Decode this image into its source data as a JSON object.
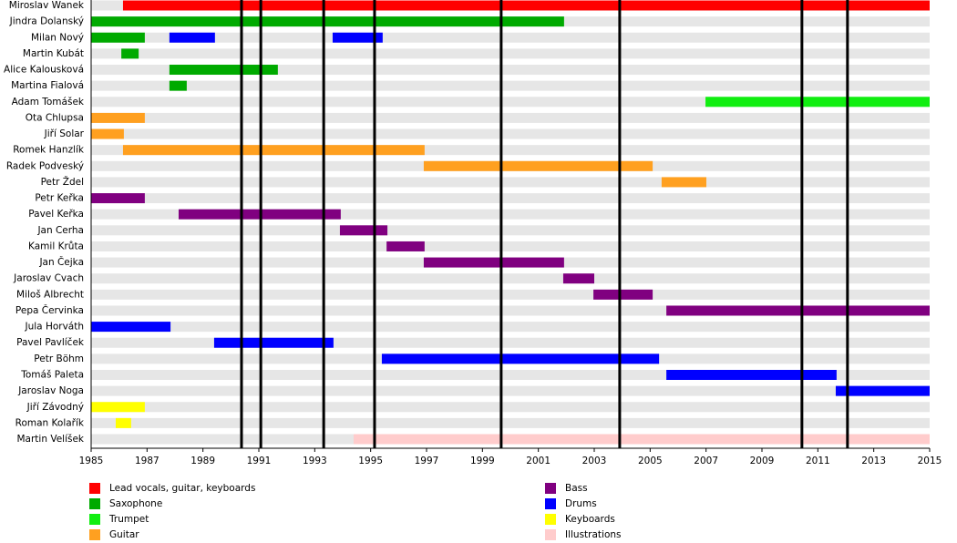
{
  "chart_data": {
    "type": "timeline",
    "xlim": [
      1985,
      2015
    ],
    "xticks": [
      1985,
      1987,
      1989,
      1991,
      1993,
      1995,
      1997,
      1999,
      2001,
      2003,
      2005,
      2007,
      2009,
      2011,
      2013,
      2015
    ],
    "roles": [
      {
        "name": "Lead vocals, guitar, keyboards",
        "color": "#ff0000"
      },
      {
        "name": "Saxophone",
        "color": "#00aa00"
      },
      {
        "name": "Trumpet",
        "color": "#11ee11"
      },
      {
        "name": "Guitar",
        "color": "#ffa020"
      },
      {
        "name": "Bass",
        "color": "#800080"
      },
      {
        "name": "Drums",
        "color": "#0000ff"
      },
      {
        "name": "Keyboards",
        "color": "#ffff00"
      },
      {
        "name": "Illustrations",
        "color": "#ffcccc"
      }
    ],
    "events": [
      1990.38,
      1991.07,
      1993.32,
      1995.14,
      1999.67,
      2003.91,
      2010.43,
      2012.06
    ],
    "members": [
      {
        "name": "Miroslav Wanek",
        "bars": [
          {
            "role": "Lead vocals, guitar, keyboards",
            "start": 1986.14,
            "end": 2015
          }
        ]
      },
      {
        "name": "Jindra Dolanský",
        "bars": [
          {
            "role": "Saxophone",
            "start": 1985,
            "end": 2001.92
          }
        ]
      },
      {
        "name": "Milan Nový",
        "bars": [
          {
            "role": "Saxophone",
            "start": 1985,
            "end": 1986.92
          },
          {
            "role": "Drums",
            "start": 1987.8,
            "end": 1989.43
          },
          {
            "role": "Drums",
            "start": 1993.64,
            "end": 1995.43
          }
        ]
      },
      {
        "name": "Martin Kubát",
        "bars": [
          {
            "role": "Saxophone",
            "start": 1986.08,
            "end": 1986.7
          }
        ]
      },
      {
        "name": "Alice Kalousková",
        "bars": [
          {
            "role": "Saxophone",
            "start": 1987.8,
            "end": 1991.68
          }
        ]
      },
      {
        "name": "Martina Fialová",
        "bars": [
          {
            "role": "Saxophone",
            "start": 1987.8,
            "end": 1988.42
          }
        ]
      },
      {
        "name": "Adam Tomášek",
        "bars": [
          {
            "role": "Trumpet",
            "start": 2006.98,
            "end": 2015
          }
        ]
      },
      {
        "name": "Ota Chlupsa",
        "bars": [
          {
            "role": "Guitar",
            "start": 1985,
            "end": 1986.92
          }
        ]
      },
      {
        "name": "Jiří Solar",
        "bars": [
          {
            "role": "Guitar",
            "start": 1985,
            "end": 1986.17
          }
        ]
      },
      {
        "name": "Romek Hanzlík",
        "bars": [
          {
            "role": "Guitar",
            "start": 1986.14,
            "end": 1996.93
          }
        ]
      },
      {
        "name": "Radek Podveský",
        "bars": [
          {
            "role": "Guitar",
            "start": 1996.9,
            "end": 2005.09
          }
        ]
      },
      {
        "name": "Petr Ždel",
        "bars": [
          {
            "role": "Guitar",
            "start": 2005.41,
            "end": 2007.01
          }
        ]
      },
      {
        "name": "Petr Keřka",
        "bars": [
          {
            "role": "Bass",
            "start": 1985,
            "end": 1986.92
          }
        ]
      },
      {
        "name": "Pavel Keřka",
        "bars": [
          {
            "role": "Bass",
            "start": 1988.13,
            "end": 1993.93
          }
        ]
      },
      {
        "name": "Jan Cerha",
        "bars": [
          {
            "role": "Bass",
            "start": 1993.9,
            "end": 1995.6
          }
        ]
      },
      {
        "name": "Kamil Krůta",
        "bars": [
          {
            "role": "Bass",
            "start": 1995.57,
            "end": 1996.93
          }
        ]
      },
      {
        "name": "Jan Čejka",
        "bars": [
          {
            "role": "Bass",
            "start": 1996.9,
            "end": 2001.92
          }
        ]
      },
      {
        "name": "Jaroslav Cvach",
        "bars": [
          {
            "role": "Bass",
            "start": 2001.89,
            "end": 2003.0
          }
        ]
      },
      {
        "name": "Miloš Albrecht",
        "bars": [
          {
            "role": "Bass",
            "start": 2002.97,
            "end": 2005.09
          }
        ]
      },
      {
        "name": "Pepa Červinka",
        "bars": [
          {
            "role": "Bass",
            "start": 2005.58,
            "end": 2015
          }
        ]
      },
      {
        "name": "Jula Horváth",
        "bars": [
          {
            "role": "Drums",
            "start": 1985,
            "end": 1987.84
          }
        ]
      },
      {
        "name": "Pavel Pavlíček",
        "bars": [
          {
            "role": "Drums",
            "start": 1989.4,
            "end": 1993.67
          }
        ]
      },
      {
        "name": "Petr Böhm",
        "bars": [
          {
            "role": "Drums",
            "start": 1995.4,
            "end": 2005.32
          }
        ]
      },
      {
        "name": "Tomáš Paleta",
        "bars": [
          {
            "role": "Drums",
            "start": 2005.58,
            "end": 2011.67
          }
        ]
      },
      {
        "name": "Jaroslav Noga",
        "bars": [
          {
            "role": "Drums",
            "start": 2011.64,
            "end": 2015
          }
        ]
      },
      {
        "name": "Jiří Závodný",
        "bars": [
          {
            "role": "Keyboards",
            "start": 1985,
            "end": 1986.92
          }
        ]
      },
      {
        "name": "Roman Kolařík",
        "bars": [
          {
            "role": "Keyboards",
            "start": 1985.88,
            "end": 1986.43
          }
        ]
      },
      {
        "name": "Martin Velíšek",
        "bars": [
          {
            "role": "Illustrations",
            "start": 1994.39,
            "end": 2015
          }
        ]
      }
    ]
  }
}
